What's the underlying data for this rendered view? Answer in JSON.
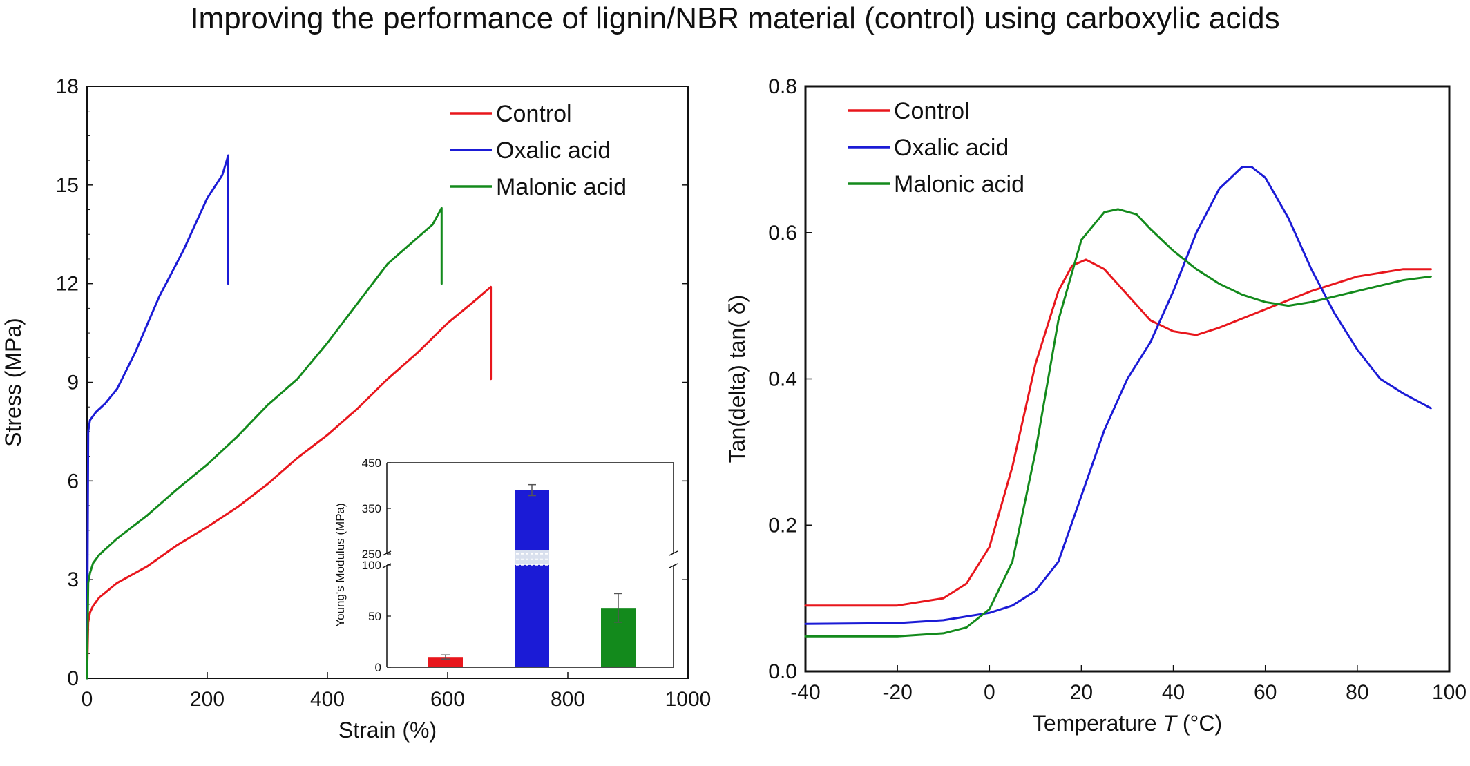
{
  "title": "Improving the performance of lignin/NBR material (control) using carboxylic acids",
  "chart_data": [
    {
      "type": "line",
      "xlabel": "Strain (%)",
      "ylabel": "Stress (MPa)",
      "xlim": [
        0,
        1000
      ],
      "ylim": [
        0,
        18
      ],
      "xticks": [
        "0",
        "200",
        "400",
        "600",
        "800",
        "1000"
      ],
      "yticks": [
        "0",
        "3",
        "6",
        "9",
        "12",
        "15",
        "18"
      ],
      "legend_position": "top-right",
      "series": [
        {
          "name": "Control",
          "color": "#e8161c",
          "x": [
            0,
            2,
            5,
            10,
            20,
            50,
            100,
            150,
            200,
            250,
            300,
            350,
            400,
            450,
            500,
            550,
            600,
            640,
            672,
            672
          ],
          "y": [
            0,
            1.7,
            2.0,
            2.2,
            2.45,
            2.9,
            3.4,
            4.05,
            4.6,
            5.2,
            5.9,
            6.7,
            7.4,
            8.2,
            9.1,
            9.9,
            10.8,
            11.4,
            11.9,
            9.1
          ]
        },
        {
          "name": "Oxalic acid",
          "color": "#1b1bd6",
          "x": [
            0,
            2,
            5,
            15,
            30,
            50,
            80,
            120,
            160,
            200,
            225,
            235,
            235
          ],
          "y": [
            0,
            7.5,
            7.85,
            8.1,
            8.35,
            8.8,
            9.9,
            11.6,
            13.0,
            14.6,
            15.3,
            15.9,
            12.0
          ]
        },
        {
          "name": "Malonic acid",
          "color": "#138a1c",
          "x": [
            0,
            2,
            5,
            10,
            20,
            50,
            100,
            150,
            200,
            250,
            300,
            350,
            400,
            450,
            500,
            550,
            575,
            590,
            590
          ],
          "y": [
            0,
            2.9,
            3.2,
            3.5,
            3.75,
            4.25,
            4.95,
            5.75,
            6.5,
            7.35,
            8.3,
            9.1,
            10.2,
            11.4,
            12.6,
            13.4,
            13.8,
            14.3,
            12.0
          ]
        }
      ]
    },
    {
      "type": "bar",
      "ylabel": "Young's Modulus (MPa)",
      "broken_axis": true,
      "yticks_lower": [
        "0",
        "50",
        "100"
      ],
      "yticks_upper": [
        "250",
        "350",
        "450"
      ],
      "categories": [
        "Control",
        "Oxalic acid",
        "Malonic acid"
      ],
      "values": [
        10,
        390,
        58
      ],
      "errors": [
        2,
        12,
        14
      ],
      "colors": [
        "#e8161c",
        "#1b1bd6",
        "#138a1c"
      ]
    },
    {
      "type": "line",
      "xlabel": "Temperature T (°C)",
      "ylabel": "Tan(delta) tan( δ)",
      "xlim": [
        -40,
        100
      ],
      "ylim": [
        0,
        0.8
      ],
      "xticks": [
        "-40",
        "-20",
        "0",
        "20",
        "40",
        "60",
        "80",
        "100"
      ],
      "yticks": [
        "0.0",
        "0.2",
        "0.4",
        "0.6",
        "0.8"
      ],
      "legend_position": "top-left",
      "series": [
        {
          "name": "Control",
          "color": "#e8161c",
          "x": [
            -40,
            -20,
            -10,
            -5,
            0,
            5,
            10,
            15,
            18,
            21,
            25,
            30,
            35,
            40,
            45,
            50,
            60,
            70,
            80,
            90,
            96
          ],
          "y": [
            0.09,
            0.09,
            0.1,
            0.12,
            0.17,
            0.28,
            0.42,
            0.52,
            0.555,
            0.563,
            0.55,
            0.515,
            0.48,
            0.465,
            0.46,
            0.47,
            0.495,
            0.52,
            0.54,
            0.55,
            0.55
          ]
        },
        {
          "name": "Oxalic acid",
          "color": "#1b1bd6",
          "x": [
            -40,
            -20,
            -10,
            0,
            5,
            10,
            15,
            20,
            25,
            30,
            35,
            40,
            45,
            50,
            55,
            57,
            60,
            65,
            70,
            75,
            80,
            85,
            90,
            96
          ],
          "y": [
            0.065,
            0.066,
            0.07,
            0.08,
            0.09,
            0.11,
            0.15,
            0.24,
            0.33,
            0.4,
            0.45,
            0.52,
            0.6,
            0.66,
            0.69,
            0.69,
            0.675,
            0.62,
            0.55,
            0.49,
            0.44,
            0.4,
            0.38,
            0.36
          ]
        },
        {
          "name": "Malonic acid",
          "color": "#138a1c",
          "x": [
            -40,
            -20,
            -10,
            -5,
            0,
            5,
            10,
            15,
            20,
            25,
            28,
            32,
            35,
            40,
            45,
            50,
            55,
            60,
            65,
            70,
            80,
            90,
            96
          ],
          "y": [
            0.048,
            0.048,
            0.052,
            0.06,
            0.085,
            0.15,
            0.3,
            0.48,
            0.59,
            0.628,
            0.632,
            0.625,
            0.605,
            0.575,
            0.55,
            0.53,
            0.515,
            0.505,
            0.5,
            0.505,
            0.52,
            0.535,
            0.54
          ]
        }
      ]
    }
  ]
}
